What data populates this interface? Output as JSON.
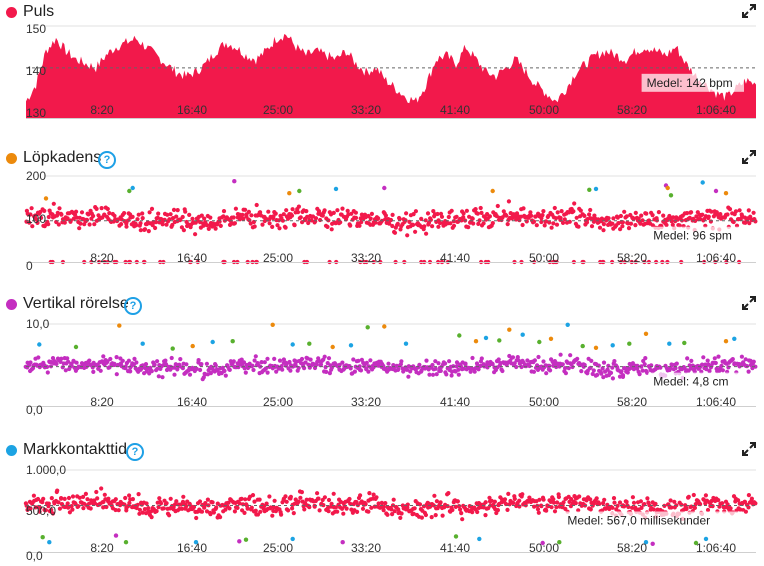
{
  "colors": {
    "red": "#f2194b",
    "magenta": "#c42ec0",
    "blue": "#1ca3e3",
    "green": "#58b02e",
    "orange": "#ec8a0c",
    "axis": "#bbbbbb",
    "help": "#1ea0e6"
  },
  "icons": {
    "help": "question-mark-circle-icon",
    "expand": "expand-arrows-icon"
  },
  "x_ticks": [
    "8:20",
    "16:40",
    "25:00",
    "33:20",
    "41:40",
    "50:00",
    "58:20",
    "1:06:40"
  ],
  "chart_data": [
    {
      "id": "puls",
      "type": "area",
      "title": "Puls",
      "color": "#f2194b",
      "y_ticks": [
        "150",
        "140",
        "130"
      ],
      "ylim": [
        130,
        152
      ],
      "average_value": 142,
      "average_label": "Medel: 142 bpm",
      "x_range_seconds": [
        0,
        4380
      ],
      "series": [
        {
          "x": [
            0,
            60,
            120,
            180,
            240,
            300,
            360,
            420,
            480,
            540,
            600,
            660,
            720,
            780,
            840,
            900,
            960,
            1020,
            1080,
            1140,
            1200,
            1260,
            1320,
            1380,
            1440,
            1500,
            1560,
            1620,
            1680,
            1740,
            1800,
            1860,
            1920,
            1980,
            2040,
            2100,
            2160,
            2220,
            2280,
            2340,
            2400,
            2460,
            2520,
            2580,
            2640,
            2700,
            2760,
            2820,
            2880,
            2940,
            3000,
            3060,
            3120,
            3180,
            3240,
            3300,
            3360,
            3420,
            3480,
            3540,
            3600,
            3660,
            3720,
            3780,
            3840,
            3900,
            3960,
            4020,
            4080,
            4140,
            4200,
            4260,
            4320,
            4380
          ],
          "y": [
            134,
            138,
            146,
            149,
            146,
            144,
            143,
            142,
            145,
            147,
            148,
            149,
            147,
            145,
            143,
            141,
            140,
            141,
            143,
            146,
            148,
            147,
            145,
            144,
            146,
            149,
            150,
            147,
            145,
            146,
            145,
            144,
            146,
            143,
            141,
            142,
            139,
            137,
            135,
            134,
            138,
            144,
            145,
            143,
            147,
            144,
            141,
            140,
            142,
            144,
            141,
            138,
            136,
            134,
            137,
            141,
            143,
            145,
            146,
            145,
            144,
            146,
            147,
            146,
            145,
            147,
            143,
            140,
            138,
            136,
            135,
            137,
            139,
            138
          ]
        }
      ]
    },
    {
      "id": "lopkadens",
      "type": "scatter",
      "title": "Löpkadens",
      "color": "#f2194b",
      "y_ticks": [
        "200",
        "100",
        "0"
      ],
      "ylim": [
        0,
        200
      ],
      "average_value": 96,
      "average_label": "Medel: 96 spm",
      "x_range_seconds": [
        0,
        4380
      ],
      "main_level": 100,
      "main_spread": 26,
      "zero_band": true,
      "outliers": {
        "colors": [
          "#ec8a0c",
          "#58b02e",
          "#1ca3e3",
          "#c42ec0"
        ],
        "x": [
          120,
          620,
          640,
          1250,
          1580,
          1640,
          1860,
          2150,
          2800,
          3380,
          3420,
          3840,
          3850,
          3870,
          4060,
          4140,
          4200
        ],
        "y": [
          148,
          165,
          172,
          188,
          160,
          165,
          170,
          172,
          165,
          168,
          170,
          178,
          172,
          155,
          185,
          165,
          160
        ]
      }
    },
    {
      "id": "vertikal",
      "type": "scatter",
      "title": "Vertikal rörelse",
      "color": "#c42ec0",
      "y_ticks": [
        "10,0",
        "0,0"
      ],
      "ylim": [
        0,
        10
      ],
      "average_value": 4.8,
      "average_label": "Medel: 4,8 cm",
      "x_range_seconds": [
        0,
        4380
      ],
      "main_level": 4.8,
      "main_spread": 1.0,
      "zero_band": false,
      "outliers": {
        "colors": [
          "#1ca3e3",
          "#58b02e",
          "#ec8a0c"
        ],
        "x": [
          80,
          300,
          560,
          700,
          880,
          1000,
          1120,
          1240,
          1480,
          1600,
          1700,
          1840,
          1950,
          2050,
          2150,
          2280,
          2600,
          2700,
          2760,
          2840,
          2900,
          2980,
          3080,
          3150,
          3250,
          3340,
          3420,
          3520,
          3620,
          3720,
          3860,
          3950,
          4200,
          4250
        ],
        "y": [
          7.5,
          7.2,
          9.8,
          7.6,
          7.0,
          7.3,
          7.8,
          7.9,
          9.9,
          7.5,
          7.6,
          7.2,
          7.4,
          9.6,
          9.7,
          7.6,
          8.6,
          7.9,
          8.3,
          8.0,
          9.3,
          8.7,
          7.8,
          8.2,
          9.9,
          7.3,
          7.1,
          7.4,
          7.6,
          8.8,
          7.6,
          7.7,
          7.9,
          8.2
        ]
      }
    },
    {
      "id": "markkontakt",
      "type": "scatter",
      "title": "Markkontakttid",
      "color": "#f2194b",
      "y_ticks": [
        "1.000,0",
        "500,0",
        "0,0"
      ],
      "ylim": [
        0,
        1000
      ],
      "average_value": 567,
      "average_label": "Medel: 567,0 millisekunder",
      "x_range_seconds": [
        0,
        4380
      ],
      "main_level": 567,
      "main_spread": 130,
      "zero_band": false,
      "outliers": {
        "colors": [
          "#58b02e",
          "#1ca3e3",
          "#c42ec0"
        ],
        "x": [
          100,
          140,
          540,
          600,
          1020,
          1280,
          1320,
          1600,
          1900,
          2580,
          2720,
          3100,
          3200,
          3720,
          3760,
          4020,
          4080
        ],
        "y": [
          180,
          120,
          200,
          120,
          120,
          130,
          150,
          160,
          120,
          190,
          160,
          110,
          120,
          120,
          100,
          110,
          160
        ]
      }
    }
  ]
}
